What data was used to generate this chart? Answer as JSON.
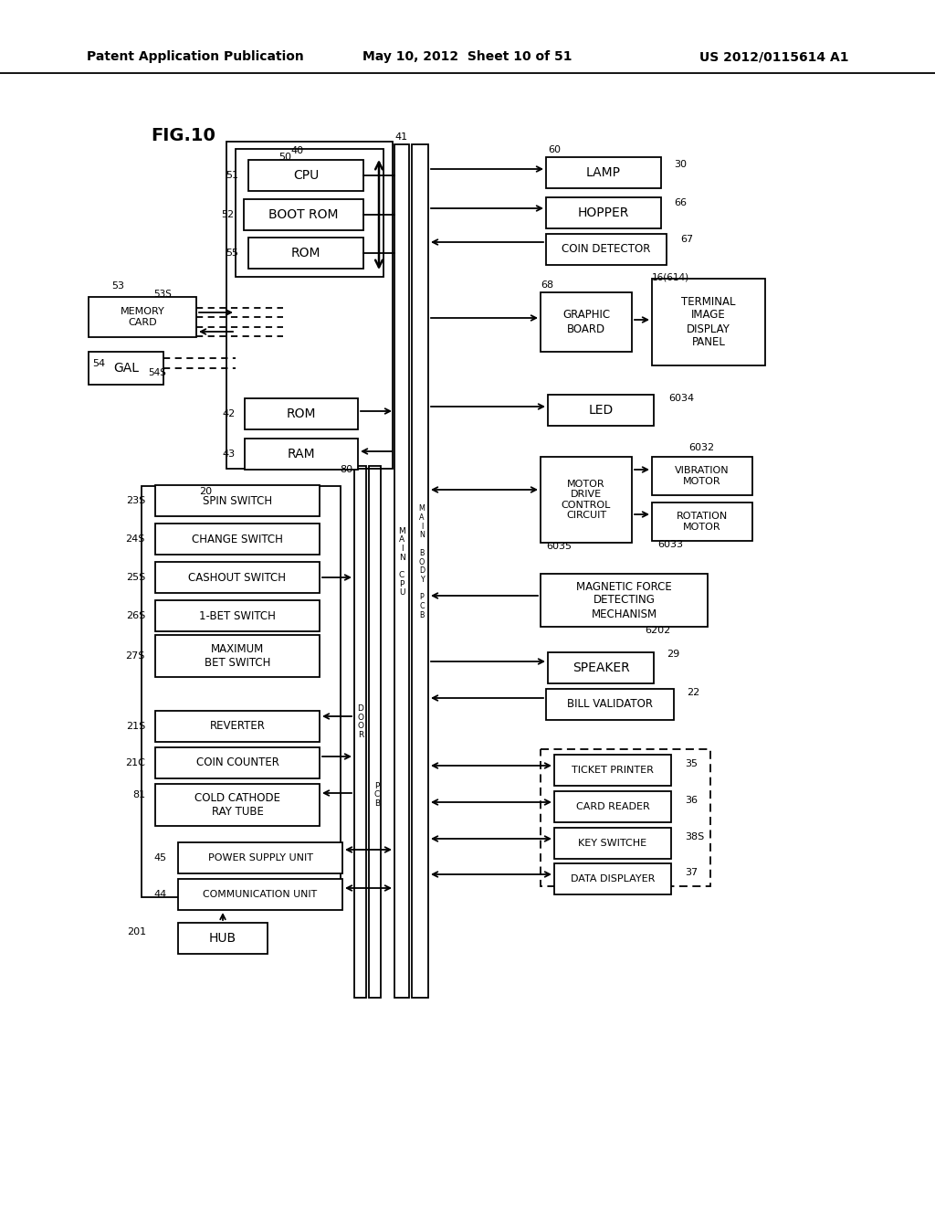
{
  "header_left": "Patent Application Publication",
  "header_mid": "May 10, 2012  Sheet 10 of 51",
  "header_right": "US 2012/0115614 A1",
  "fig_label": "FIG.10",
  "bg": "#ffffff",
  "lc": "#000000"
}
